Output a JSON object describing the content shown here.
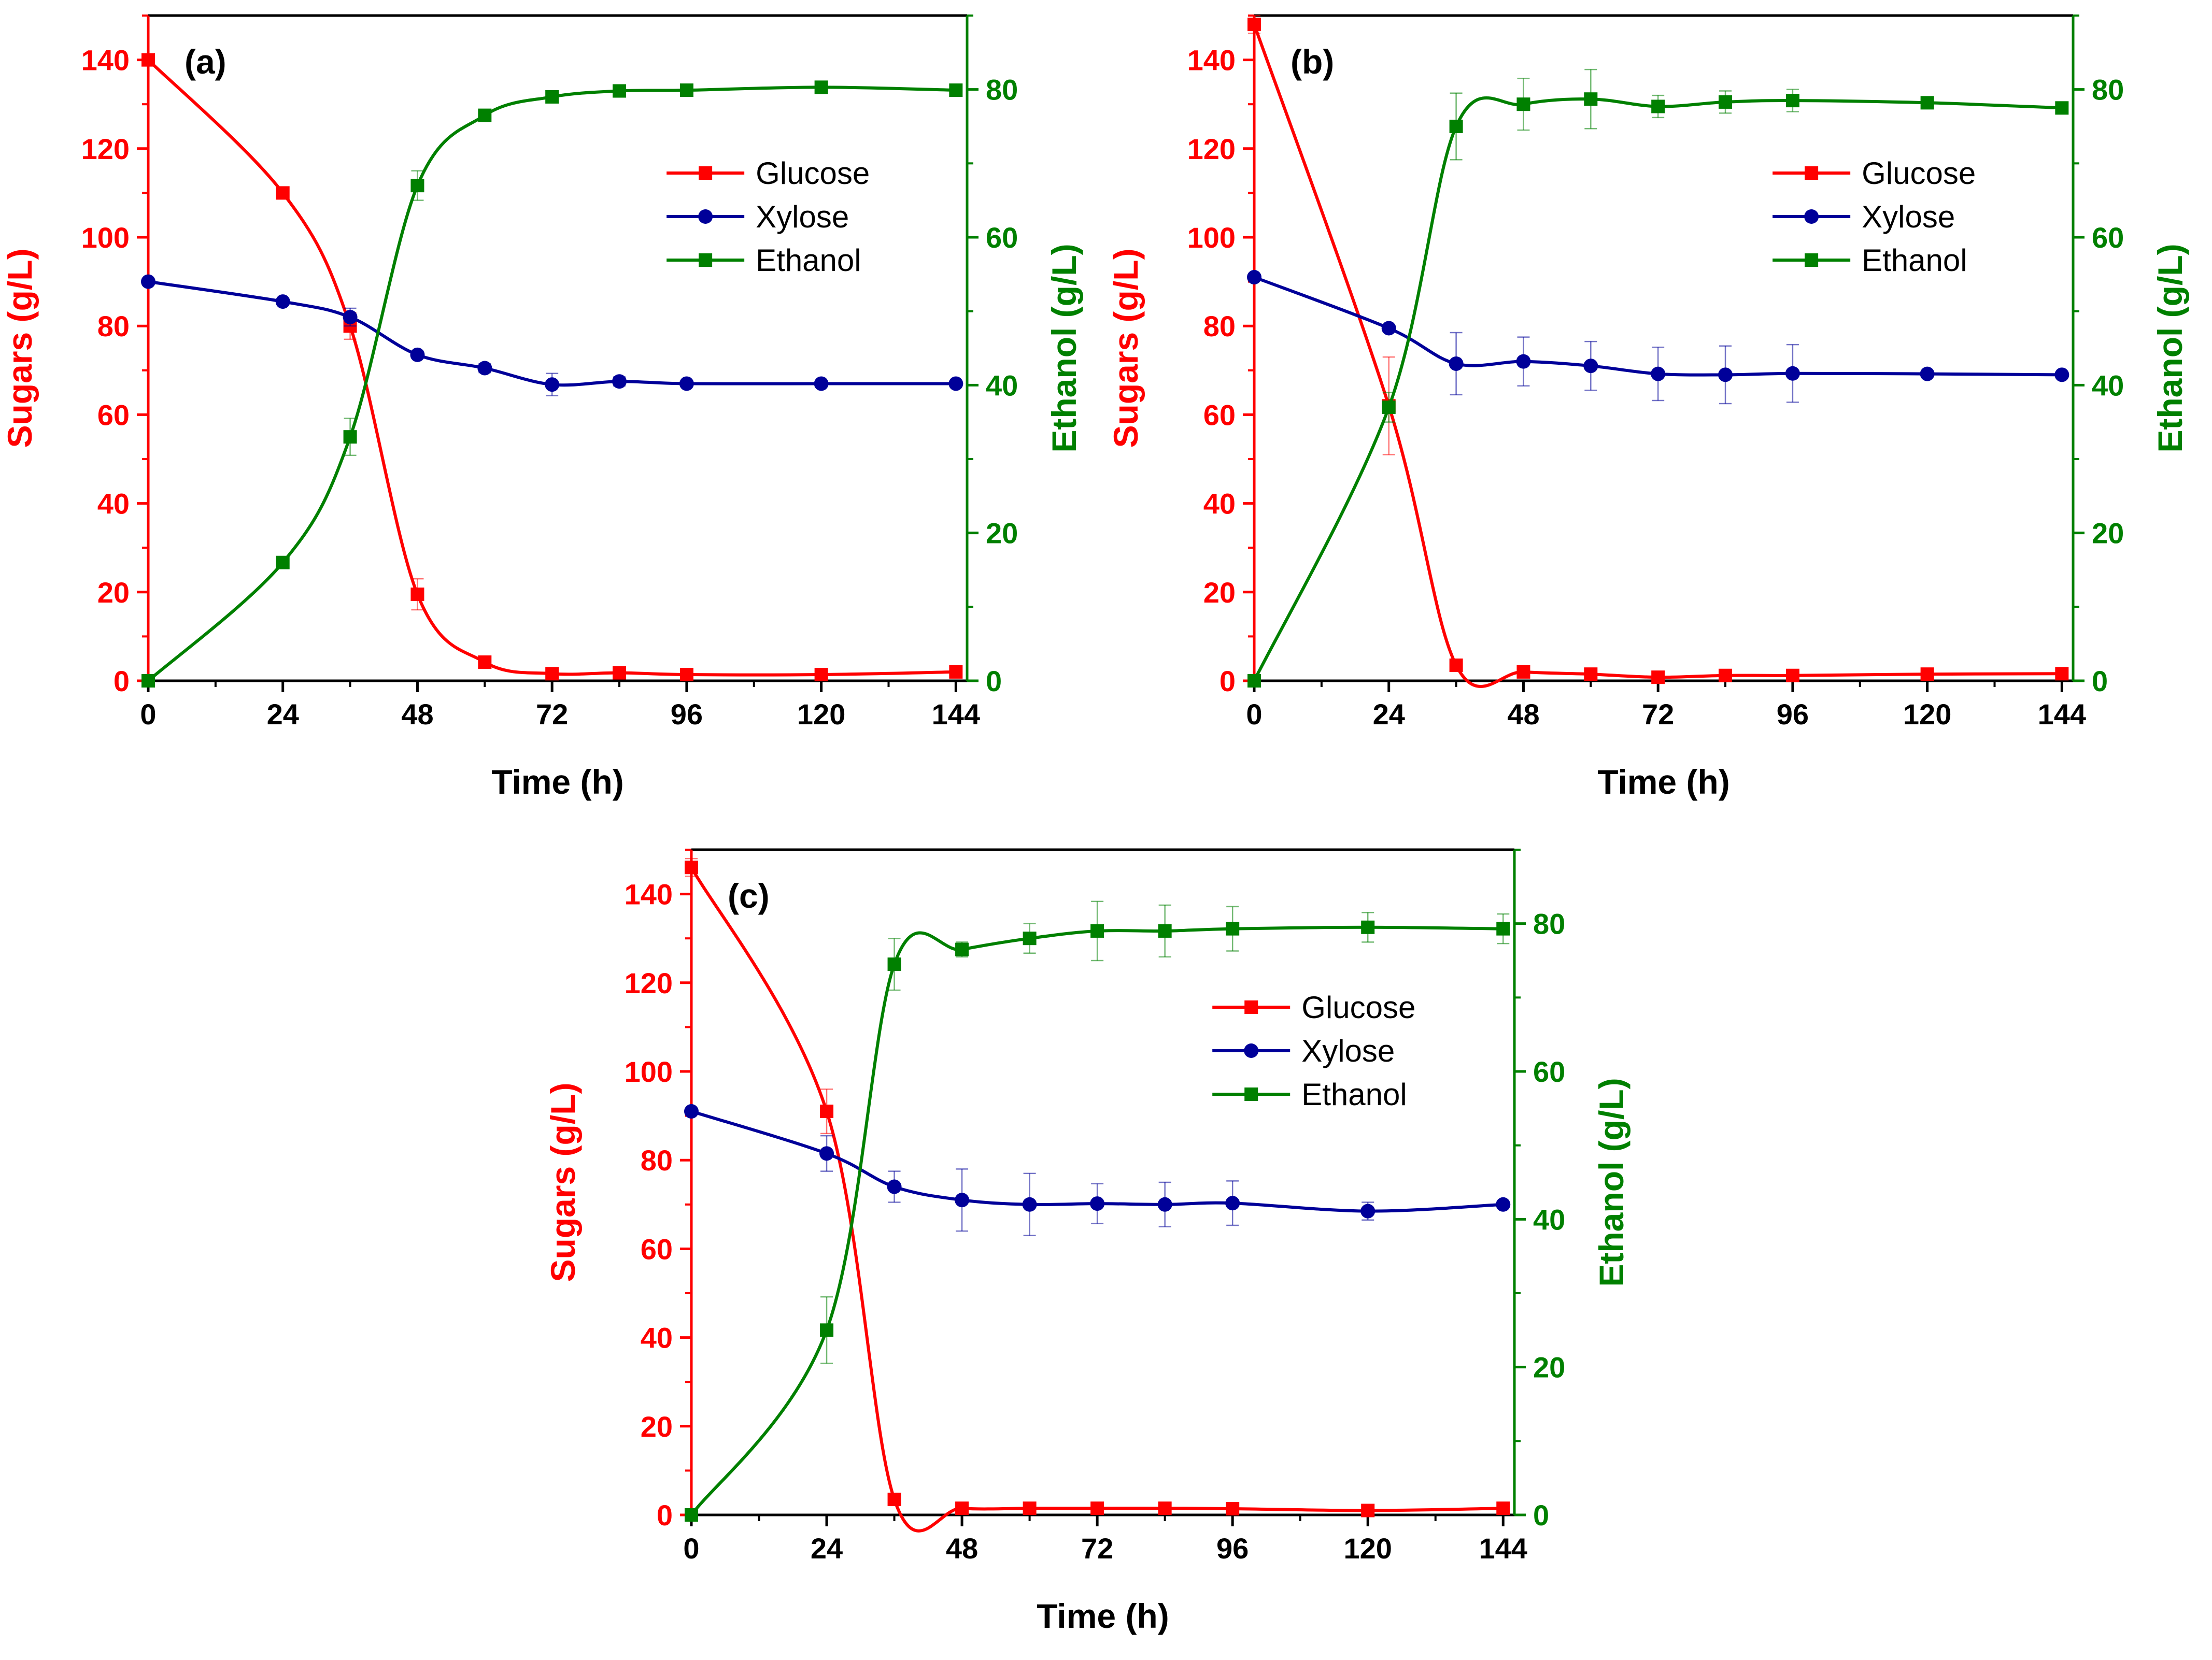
{
  "colors": {
    "glucose": "#ff0000",
    "xylose": "#000099",
    "ethanol": "#008000",
    "axis": "#000000"
  },
  "chart_data": [
    {
      "type": "line",
      "panel_label": "(a)",
      "xlabel": "Time (h)",
      "ylabel_left": "Sugars (g/L)",
      "ylabel_right": "Ethanol (g/L)",
      "xlim": [
        0,
        146
      ],
      "ylim_left": [
        0,
        150
      ],
      "ylim_right": [
        0,
        90
      ],
      "xticks": [
        0,
        24,
        48,
        72,
        96,
        120,
        144
      ],
      "yticks_left": [
        0,
        20,
        40,
        60,
        80,
        100,
        120,
        140
      ],
      "yticks_right": [
        0,
        20,
        40,
        60,
        80
      ],
      "legend_position": "top-right",
      "series": [
        {
          "name": "Glucose",
          "axis": "left",
          "marker": "square",
          "color": "#ff0000",
          "x": [
            0,
            24,
            36,
            48,
            60,
            72,
            84,
            96,
            120,
            144
          ],
          "y": [
            140,
            110,
            80,
            19.5,
            4.2,
            1.6,
            1.8,
            1.4,
            1.4,
            2.0
          ],
          "err": [
            0,
            0,
            3,
            3.5,
            0.5,
            0.4,
            0.4,
            0.2,
            0.2,
            0.3
          ]
        },
        {
          "name": "Xylose",
          "axis": "left",
          "marker": "circle",
          "color": "#000099",
          "x": [
            0,
            24,
            36,
            48,
            60,
            72,
            84,
            96,
            120,
            144
          ],
          "y": [
            90,
            85.5,
            82,
            73.5,
            70.5,
            66.8,
            67.5,
            67,
            67,
            67
          ],
          "err": [
            0,
            0.5,
            2,
            0.8,
            1,
            2.5,
            1,
            0.6,
            0.5,
            0.5
          ]
        },
        {
          "name": "Ethanol",
          "axis": "right",
          "marker": "square",
          "color": "#008000",
          "x": [
            0,
            24,
            36,
            48,
            60,
            72,
            84,
            96,
            120,
            144
          ],
          "y": [
            0,
            16,
            33,
            67,
            76.5,
            79,
            79.8,
            79.9,
            80.3,
            79.9
          ],
          "err": [
            0,
            0.5,
            2.5,
            2,
            0.6,
            0.5,
            0.4,
            0.3,
            0.4,
            0.4
          ]
        }
      ]
    },
    {
      "type": "line",
      "panel_label": "(b)",
      "xlabel": "Time (h)",
      "ylabel_left": "Sugars (g/L)",
      "ylabel_right": "Ethanol (g/L)",
      "xlim": [
        0,
        146
      ],
      "ylim_left": [
        0,
        150
      ],
      "ylim_right": [
        0,
        90
      ],
      "xticks": [
        0,
        24,
        48,
        72,
        96,
        120,
        144
      ],
      "yticks_left": [
        0,
        20,
        40,
        60,
        80,
        100,
        120,
        140
      ],
      "yticks_right": [
        0,
        20,
        40,
        60,
        80
      ],
      "legend_position": "top-right",
      "series": [
        {
          "name": "Glucose",
          "axis": "left",
          "marker": "square",
          "color": "#ff0000",
          "x": [
            0,
            24,
            36,
            48,
            60,
            72,
            84,
            96,
            120,
            144
          ],
          "y": [
            148,
            62,
            3.5,
            2,
            1.5,
            0.8,
            1.2,
            1.2,
            1.5,
            1.6
          ],
          "err": [
            2,
            11,
            0.5,
            0.4,
            0.3,
            0.2,
            0.3,
            0.3,
            0.3,
            0.3
          ]
        },
        {
          "name": "Xylose",
          "axis": "left",
          "marker": "circle",
          "color": "#000099",
          "x": [
            0,
            24,
            36,
            48,
            60,
            72,
            84,
            96,
            120,
            144
          ],
          "y": [
            91,
            79.5,
            71.5,
            72,
            71,
            69.2,
            69,
            69.3,
            69.2,
            69
          ],
          "err": [
            0,
            0.8,
            7,
            5.5,
            5.5,
            6,
            6.5,
            6.5,
            0.5,
            0.5
          ]
        },
        {
          "name": "Ethanol",
          "axis": "right",
          "marker": "square",
          "color": "#008000",
          "x": [
            0,
            24,
            36,
            48,
            60,
            72,
            84,
            96,
            120,
            144
          ],
          "y": [
            0,
            37,
            75,
            78,
            78.7,
            77.7,
            78.3,
            78.5,
            78.2,
            77.5
          ],
          "err": [
            0,
            2,
            4.5,
            3.5,
            4,
            1.5,
            1.5,
            1.5,
            0.4,
            0.4
          ]
        }
      ]
    },
    {
      "type": "line",
      "panel_label": "(c)",
      "xlabel": "Time (h)",
      "ylabel_left": "Sugars (g/L)",
      "ylabel_right": "Ethanol (g/L)",
      "xlim": [
        0,
        146
      ],
      "ylim_left": [
        0,
        150
      ],
      "ylim_right": [
        0,
        90
      ],
      "xticks": [
        0,
        24,
        48,
        72,
        96,
        120,
        144
      ],
      "yticks_left": [
        0,
        20,
        40,
        60,
        80,
        100,
        120,
        140
      ],
      "yticks_right": [
        0,
        20,
        40,
        60,
        80
      ],
      "legend_position": "top-right",
      "series": [
        {
          "name": "Glucose",
          "axis": "left",
          "marker": "square",
          "color": "#ff0000",
          "x": [
            0,
            24,
            36,
            48,
            60,
            72,
            84,
            96,
            120,
            144
          ],
          "y": [
            146,
            91,
            3.5,
            1.5,
            1.5,
            1.5,
            1.5,
            1.4,
            1.0,
            1.5
          ],
          "err": [
            2,
            5,
            0.5,
            0.3,
            0.3,
            0.3,
            0.3,
            0.3,
            0.2,
            0.3
          ]
        },
        {
          "name": "Xylose",
          "axis": "left",
          "marker": "circle",
          "color": "#000099",
          "x": [
            0,
            24,
            36,
            48,
            60,
            72,
            84,
            96,
            120,
            144
          ],
          "y": [
            91,
            81.5,
            74,
            71,
            70,
            70.2,
            70,
            70.3,
            68.5,
            70
          ],
          "err": [
            0,
            4,
            3.5,
            7,
            7,
            4.5,
            5,
            5,
            2,
            0.5
          ]
        },
        {
          "name": "Ethanol",
          "axis": "right",
          "marker": "square",
          "color": "#008000",
          "x": [
            0,
            24,
            36,
            48,
            60,
            72,
            84,
            96,
            120,
            144
          ],
          "y": [
            0,
            25,
            74.5,
            76.5,
            78,
            79,
            79,
            79.3,
            79.5,
            79.3
          ],
          "err": [
            0,
            4.5,
            3.5,
            1,
            2,
            4,
            3.5,
            3,
            2,
            2
          ]
        }
      ]
    }
  ]
}
